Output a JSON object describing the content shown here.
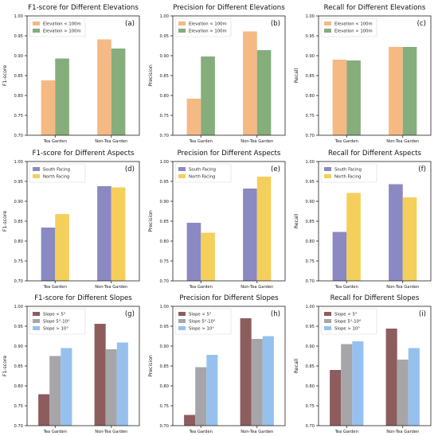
{
  "colors": {
    "elevation": [
      "#f5b983",
      "#86ad7c"
    ],
    "aspect": [
      "#8b89c2",
      "#f5cf5b"
    ],
    "slope": [
      "#8d5d5e",
      "#a6a6a8",
      "#96c1ee"
    ]
  },
  "chart_data": [
    {
      "type": "bar",
      "panel_label": "(a)",
      "title": "F1-score for Different Elevations",
      "xlabel": "",
      "ylabel": "F1-score",
      "ylim": [
        0.7,
        1.0
      ],
      "yticks": [
        "0.70",
        "0.75",
        "0.80",
        "0.85",
        "0.90",
        "0.95",
        "1.00"
      ],
      "categories": [
        "Tea Garden",
        "Non-Tea Garden"
      ],
      "series": [
        {
          "name": "Elevation < 100m",
          "values": [
            0.838,
            0.941
          ]
        },
        {
          "name": "Elevation > 100m",
          "values": [
            0.893,
            0.918
          ]
        }
      ],
      "legend": "top-left",
      "palette": "elevation"
    },
    {
      "type": "bar",
      "panel_label": "(b)",
      "title": "Precision for Different Elevations",
      "xlabel": "",
      "ylabel": "Precision",
      "ylim": [
        0.7,
        1.0
      ],
      "yticks": [
        "0.70",
        "0.75",
        "0.80",
        "0.85",
        "0.90",
        "0.95",
        "1.00"
      ],
      "categories": [
        "Tea Garden",
        "Non-Tea Garden"
      ],
      "series": [
        {
          "name": "Elevation < 100m",
          "values": [
            0.792,
            0.961
          ]
        },
        {
          "name": "Elevation > 100m",
          "values": [
            0.898,
            0.914
          ]
        }
      ],
      "legend": "top-left",
      "palette": "elevation"
    },
    {
      "type": "bar",
      "panel_label": "(c)",
      "title": "Recall for Different Elevations",
      "xlabel": "",
      "ylabel": "Recall",
      "ylim": [
        0.7,
        1.0
      ],
      "yticks": [
        "0.70",
        "0.75",
        "0.80",
        "0.85",
        "0.90",
        "0.95",
        "1.00"
      ],
      "categories": [
        "Tea Garden",
        "Non-Tea Garden"
      ],
      "series": [
        {
          "name": "Elevation < 100m",
          "values": [
            0.89,
            0.922
          ]
        },
        {
          "name": "Elevation > 100m",
          "values": [
            0.888,
            0.922
          ]
        }
      ],
      "legend": "top-left",
      "palette": "elevation"
    },
    {
      "type": "bar",
      "panel_label": "(d)",
      "title": "F1-score for Different Aspects",
      "xlabel": "",
      "ylabel": "F1-score",
      "ylim": [
        0.7,
        1.0
      ],
      "yticks": [
        "0.70",
        "0.75",
        "0.80",
        "0.85",
        "0.90",
        "0.95",
        "1.00"
      ],
      "categories": [
        "Tea Garden",
        "Non-Tea Garden"
      ],
      "series": [
        {
          "name": "South Facing",
          "values": [
            0.834,
            0.938
          ]
        },
        {
          "name": "North Facing",
          "values": [
            0.868,
            0.935
          ]
        }
      ],
      "legend": "top-left",
      "palette": "aspect"
    },
    {
      "type": "bar",
      "panel_label": "(e)",
      "title": "Precision for Different Aspects",
      "xlabel": "",
      "ylabel": "Precision",
      "ylim": [
        0.7,
        1.0
      ],
      "yticks": [
        "0.70",
        "0.75",
        "0.80",
        "0.85",
        "0.90",
        "0.95",
        "1.00"
      ],
      "categories": [
        "Tea Garden",
        "Non-Tea Garden"
      ],
      "series": [
        {
          "name": "South Facing",
          "values": [
            0.846,
            0.932
          ]
        },
        {
          "name": "North Facing",
          "values": [
            0.821,
            0.962
          ]
        }
      ],
      "legend": "top-left",
      "palette": "aspect"
    },
    {
      "type": "bar",
      "panel_label": "(f)",
      "title": "Recall for Different Aspects",
      "xlabel": "",
      "ylabel": "Recall",
      "ylim": [
        0.7,
        1.0
      ],
      "yticks": [
        "0.70",
        "0.75",
        "0.80",
        "0.85",
        "0.90",
        "0.95",
        "1.00"
      ],
      "categories": [
        "Tea Garden",
        "Non-Tea Garden"
      ],
      "series": [
        {
          "name": "South Facing",
          "values": [
            0.823,
            0.943
          ]
        },
        {
          "name": "North Facing",
          "values": [
            0.921,
            0.91
          ]
        }
      ],
      "legend": "top-left",
      "palette": "aspect"
    },
    {
      "type": "bar",
      "panel_label": "(g)",
      "title": "F1-score for Different Slopes",
      "xlabel": "",
      "ylabel": "F1-score",
      "ylim": [
        0.7,
        1.0
      ],
      "yticks": [
        "0.70",
        "0.75",
        "0.80",
        "0.85",
        "0.90",
        "0.95",
        "1.00"
      ],
      "categories": [
        "Tea Garden",
        "Non-Tea Garden"
      ],
      "series": [
        {
          "name": "Slope < 5°",
          "values": [
            0.779,
            0.956
          ]
        },
        {
          "name": "Slope 5°-10°",
          "values": [
            0.875,
            0.892
          ]
        },
        {
          "name": "Slope > 10°",
          "values": [
            0.895,
            0.909
          ]
        }
      ],
      "legend": "top-left",
      "palette": "slope"
    },
    {
      "type": "bar",
      "panel_label": "(h)",
      "title": "Precision for Different Slopes",
      "xlabel": "",
      "ylabel": "Precision",
      "ylim": [
        0.7,
        1.0
      ],
      "yticks": [
        "0.70",
        "0.75",
        "0.80",
        "0.85",
        "0.90",
        "0.95",
        "1.00"
      ],
      "categories": [
        "Tea Garden",
        "Non-Tea Garden"
      ],
      "series": [
        {
          "name": "Slope < 5°",
          "values": [
            0.727,
            0.97
          ]
        },
        {
          "name": "Slope 5°-10°",
          "values": [
            0.847,
            0.918
          ]
        },
        {
          "name": "Slope > 10°",
          "values": [
            0.878,
            0.925
          ]
        }
      ],
      "legend": "top-left",
      "palette": "slope"
    },
    {
      "type": "bar",
      "panel_label": "(i)",
      "title": "Recall for Different Slopes",
      "xlabel": "",
      "ylabel": "Recall",
      "ylim": [
        0.7,
        1.0
      ],
      "yticks": [
        "0.70",
        "0.75",
        "0.80",
        "0.85",
        "0.90",
        "0.95",
        "1.00"
      ],
      "categories": [
        "Tea Garden",
        "Non-Tea Garden"
      ],
      "series": [
        {
          "name": "Slope < 5°",
          "values": [
            0.84,
            0.944
          ]
        },
        {
          "name": "Slope 5°-10°",
          "values": [
            0.905,
            0.866
          ]
        },
        {
          "name": "Slope > 10°",
          "values": [
            0.912,
            0.895
          ]
        }
      ],
      "legend": "top-left",
      "palette": "slope"
    }
  ]
}
